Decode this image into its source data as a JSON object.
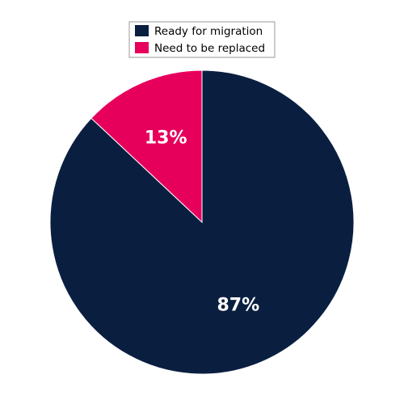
{
  "chart_data": {
    "type": "pie",
    "categories": [
      "Ready for migration",
      "Need to be replaced"
    ],
    "values": [
      87,
      13
    ],
    "value_labels": [
      "87%",
      "13%"
    ],
    "colors": [
      "#0a1f40",
      "#e6005c"
    ],
    "legend": "top"
  }
}
